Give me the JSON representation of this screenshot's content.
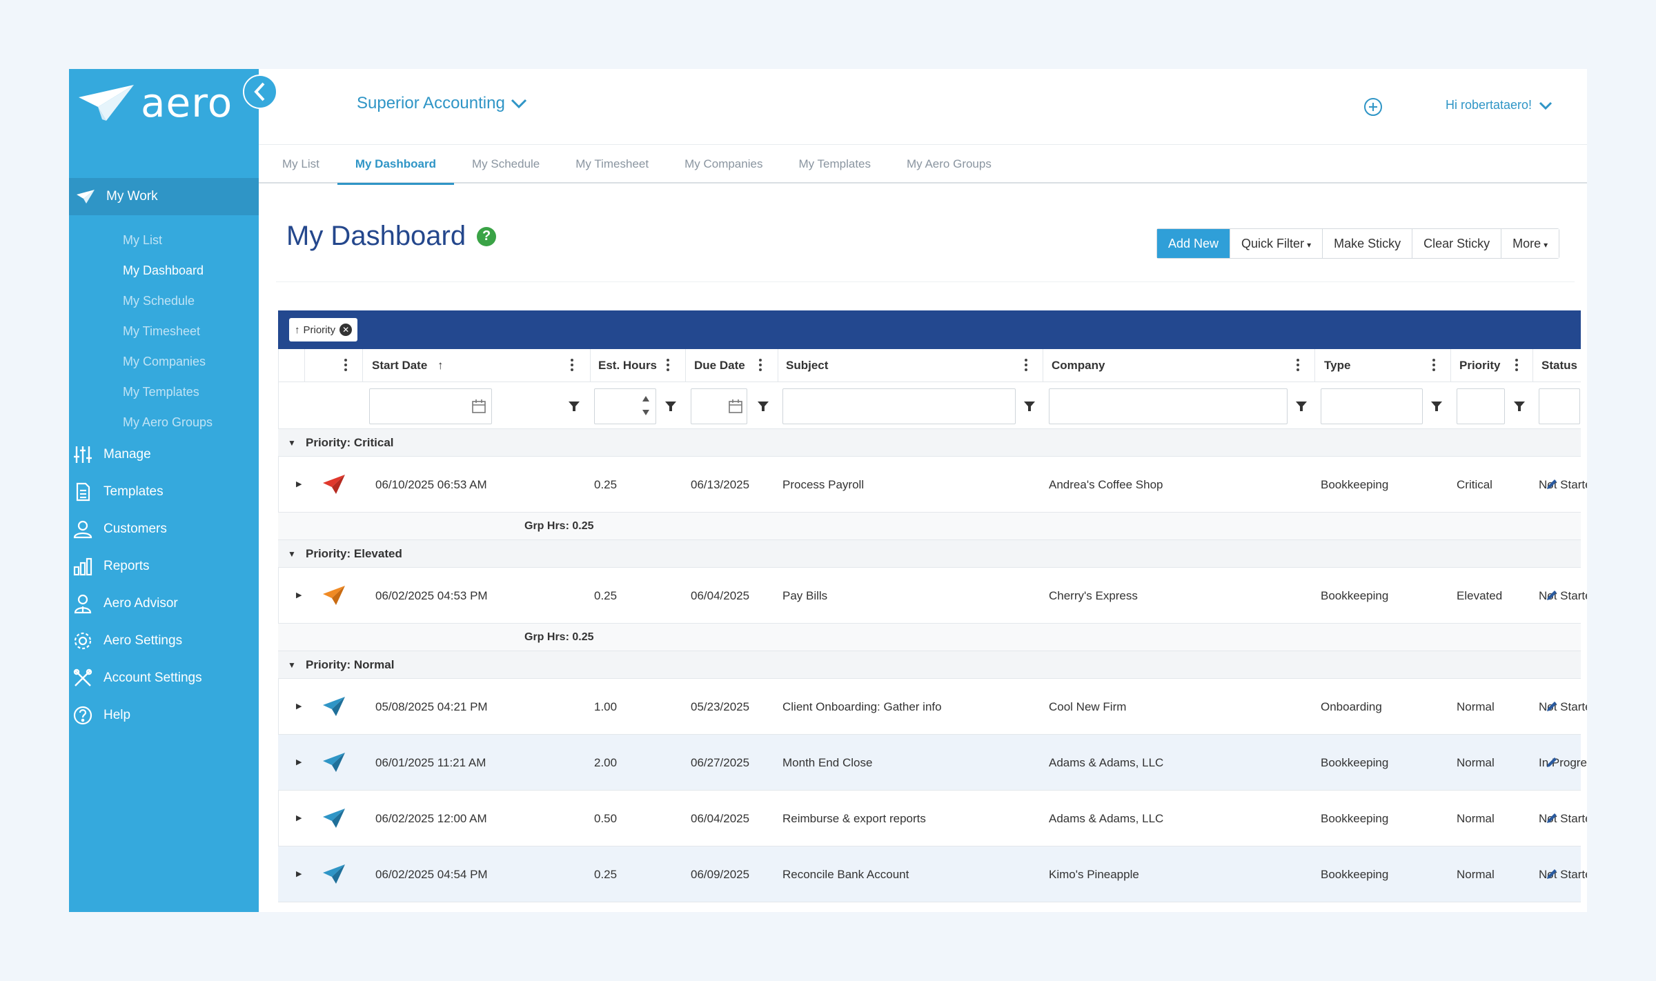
{
  "app": {
    "logo_text": "aero",
    "org_name": "Superior Accounting",
    "greeting": "Hi robertataero!"
  },
  "sidebar": {
    "section": "My Work",
    "sub_items": [
      "My List",
      "My Dashboard",
      "My Schedule",
      "My Timesheet",
      "My Companies",
      "My Templates",
      "My Aero Groups"
    ],
    "active_sub": "My Dashboard",
    "items": [
      {
        "label": "Manage",
        "icon": "sliders-icon"
      },
      {
        "label": "Templates",
        "icon": "document-icon"
      },
      {
        "label": "Customers",
        "icon": "user-icon"
      },
      {
        "label": "Reports",
        "icon": "bar-chart-icon"
      },
      {
        "label": "Aero Advisor",
        "icon": "advisor-icon"
      },
      {
        "label": "Aero Settings",
        "icon": "gear-icon"
      },
      {
        "label": "Account Settings",
        "icon": "tools-icon"
      },
      {
        "label": "Help",
        "icon": "help-icon"
      }
    ]
  },
  "tabs": [
    "My List",
    "My Dashboard",
    "My Schedule",
    "My Timesheet",
    "My Companies",
    "My Templates",
    "My Aero Groups"
  ],
  "active_tab": "My Dashboard",
  "page": {
    "title": "My Dashboard",
    "help_glyph": "?"
  },
  "toolbar": {
    "add_new": "Add New",
    "quick_filter": "Quick Filter",
    "make_sticky": "Make Sticky",
    "clear_sticky": "Clear Sticky",
    "more": "More"
  },
  "group_chip": {
    "arrow": "↑",
    "label": "Priority"
  },
  "columns": {
    "start_date": "Start Date",
    "sort_arrow": "↑",
    "est_hours": "Est. Hours",
    "due_date": "Due Date",
    "subject": "Subject",
    "company": "Company",
    "type": "Type",
    "priority": "Priority",
    "status": "Status"
  },
  "groups": [
    {
      "label": "Priority: Critical",
      "icon_color": "#e0382c",
      "footer": "Grp Hrs: 0.25",
      "rows": [
        {
          "start": "06/10/2025 06:53 AM",
          "hours": "0.25",
          "due": "06/13/2025",
          "subject": "Process Payroll",
          "company": "Andrea's Coffee Shop",
          "type": "Bookkeeping",
          "priority": "Critical",
          "status": "Not Started"
        }
      ]
    },
    {
      "label": "Priority: Elevated",
      "icon_color": "#f08a24",
      "footer": "Grp Hrs: 0.25",
      "rows": [
        {
          "start": "06/02/2025 04:53 PM",
          "hours": "0.25",
          "due": "06/04/2025",
          "subject": "Pay Bills",
          "company": "Cherry's Express",
          "type": "Bookkeeping",
          "priority": "Elevated",
          "status": "Not Started"
        }
      ]
    },
    {
      "label": "Priority: Normal",
      "icon_color": "#2f95c6",
      "rows": [
        {
          "start": "05/08/2025 04:21 PM",
          "hours": "1.00",
          "due": "05/23/2025",
          "subject": "Client Onboarding: Gather info",
          "company": "Cool New Firm",
          "type": "Onboarding",
          "priority": "Normal",
          "status": "Not Started"
        },
        {
          "start": "06/01/2025 11:21 AM",
          "hours": "2.00",
          "due": "06/27/2025",
          "subject": "Month End Close",
          "company": "Adams & Adams, LLC",
          "type": "Bookkeeping",
          "priority": "Normal",
          "status": "In Progress"
        },
        {
          "start": "06/02/2025 12:00 AM",
          "hours": "0.50",
          "due": "06/04/2025",
          "subject": "Reimburse & export reports",
          "company": "Adams & Adams, LLC",
          "type": "Bookkeeping",
          "priority": "Normal",
          "status": "Not Started"
        },
        {
          "start": "06/02/2025 04:54 PM",
          "hours": "0.25",
          "due": "06/09/2025",
          "subject": "Reconcile Bank Account",
          "company": "Kimo's Pineapple",
          "type": "Bookkeeping",
          "priority": "Normal",
          "status": "Not Started"
        }
      ]
    }
  ]
}
